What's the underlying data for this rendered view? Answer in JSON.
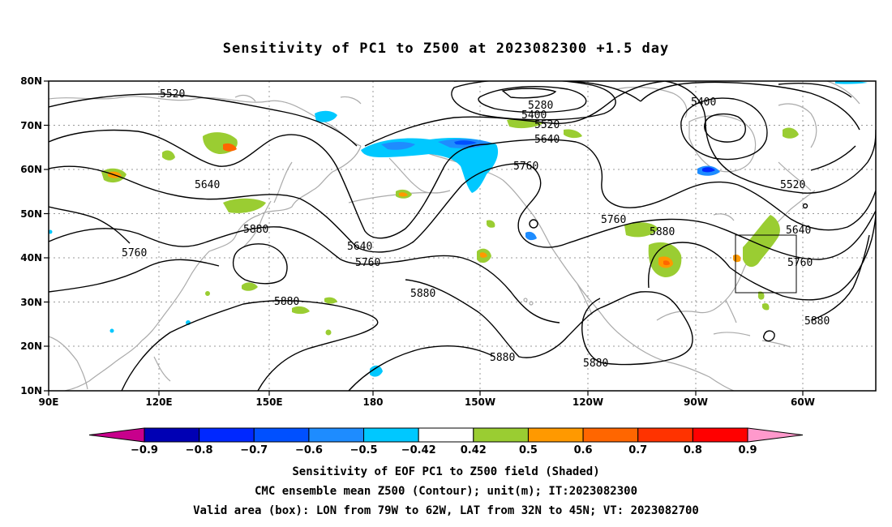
{
  "title": "Sensitivity of PC1 to Z500 at 2023082300 +1.5 day",
  "lat_labels": [
    "80N",
    "70N",
    "60N",
    "50N",
    "40N",
    "30N",
    "20N",
    "10N"
  ],
  "lon_labels": [
    "90E",
    "120E",
    "150E",
    "180",
    "150W",
    "120W",
    "90W",
    "60W"
  ],
  "contour_labels": [
    {
      "text": "5520",
      "kind": "z500"
    },
    {
      "text": "5640",
      "kind": "z500"
    },
    {
      "text": "5760",
      "kind": "z500"
    },
    {
      "text": "5880",
      "kind": "z500"
    },
    {
      "text": "5880",
      "kind": "z500"
    },
    {
      "text": "5640",
      "kind": "z500"
    },
    {
      "text": "5760",
      "kind": "z500"
    },
    {
      "text": "5280",
      "kind": "z500"
    },
    {
      "text": "5400",
      "kind": "z500"
    },
    {
      "text": "5520",
      "kind": "z500"
    },
    {
      "text": "5640",
      "kind": "z500"
    },
    {
      "text": "5760",
      "kind": "z500"
    },
    {
      "text": "5880",
      "kind": "z500"
    },
    {
      "text": "5880",
      "kind": "z500"
    },
    {
      "text": "5760",
      "kind": "z500"
    },
    {
      "text": "5880",
      "kind": "z500"
    },
    {
      "text": "5880",
      "kind": "z500"
    },
    {
      "text": "5400",
      "kind": "z500"
    },
    {
      "text": "5520",
      "kind": "z500"
    },
    {
      "text": "5640",
      "kind": "z500"
    },
    {
      "text": "5760",
      "kind": "z500"
    },
    {
      "text": "5880",
      "kind": "z500"
    }
  ],
  "colorbar": {
    "labels": [
      "−0.9",
      "−0.8",
      "−0.7",
      "−0.6",
      "−0.5",
      "−0.42",
      "0.42",
      "0.5",
      "0.6",
      "0.7",
      "0.8",
      "0.9"
    ],
    "colors": [
      "#c8008c",
      "#0000b4",
      "#0028ff",
      "#0050ff",
      "#1e8cff",
      "#00c8ff",
      "#ffffff",
      "#9acd32",
      "#ff9900",
      "#ff6600",
      "#ff3300",
      "#ff0000",
      "#ff99cc"
    ]
  },
  "box": {
    "lon_w": -79,
    "lon_e": -62,
    "lat_s": 32,
    "lat_n": 45
  },
  "captions": {
    "line1": "Sensitivity of EOF PC1 to Z500 field (Shaded)",
    "line2": "CMC ensemble mean Z500 (Contour); unit(m); IT:2023082300",
    "line3": "Valid area (box): LON from 79W to 62W, LAT from 32N to 45N; VT: 2023082700"
  }
}
